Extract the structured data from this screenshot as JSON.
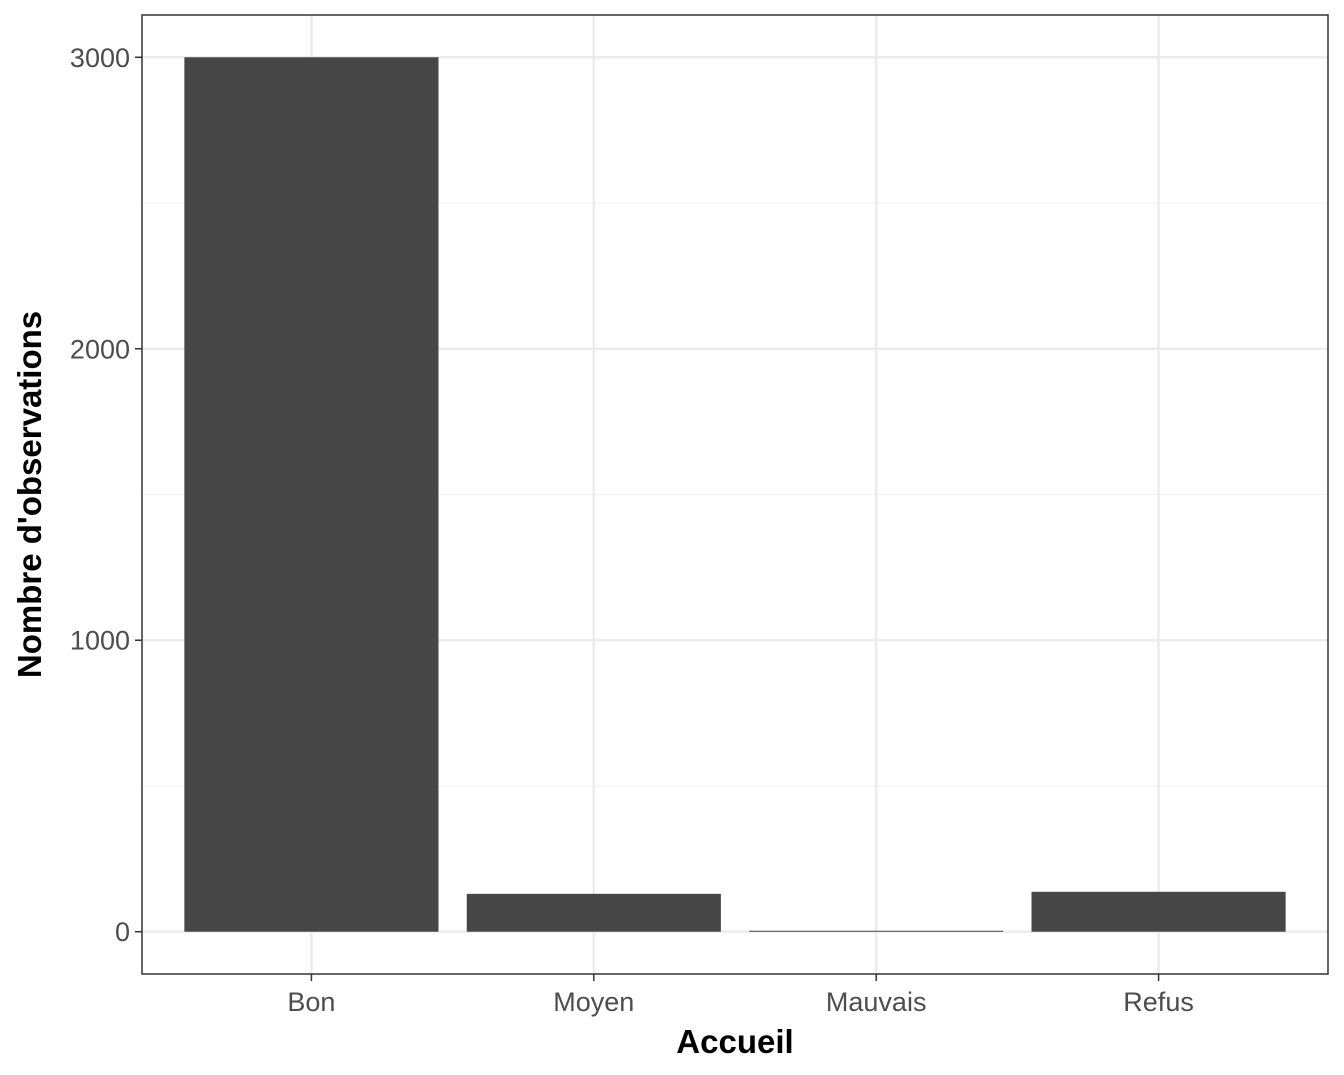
{
  "chart_data": {
    "type": "bar",
    "categories": [
      "Bon",
      "Moyen",
      "Mauvais",
      "Refus"
    ],
    "values": [
      3000,
      130,
      3,
      137
    ],
    "title": "",
    "xlabel": "Accueil",
    "ylabel": "Nombre d'observations",
    "ylim": [
      -145,
      3145
    ],
    "yticks": [
      0,
      1000,
      2000,
      3000
    ],
    "yticks_minor": [
      500,
      1500,
      2500
    ],
    "grid": true,
    "legend": "none",
    "colors": {
      "bar": "#474747",
      "grid_major": "#ebebeb",
      "grid_minor": "#f2f2f2",
      "panel_border": "#333333",
      "tick_text": "#4d4d4d"
    }
  }
}
